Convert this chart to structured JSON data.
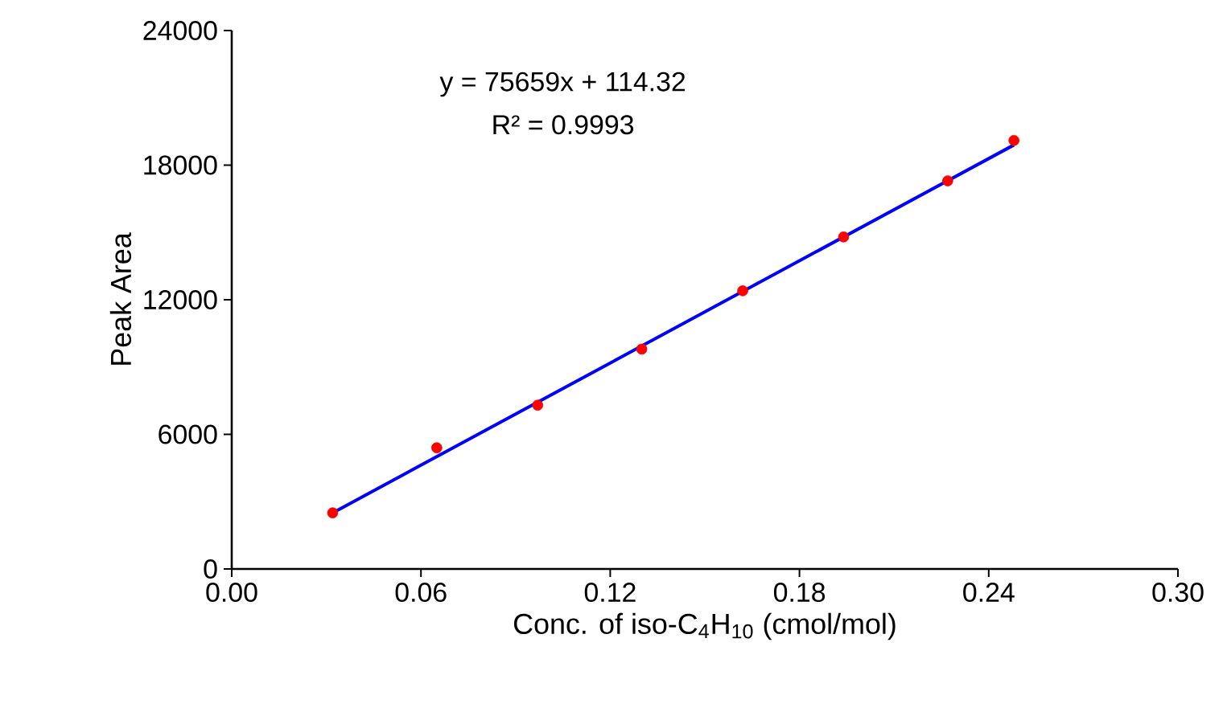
{
  "chart_data": {
    "type": "scatter",
    "xlabel": "Conc. of iso-C$_{4}$H$_{10}$ (cmol/mol)",
    "ylabel": "Peak Area",
    "xlim": [
      0,
      0.3
    ],
    "xticks": [
      {
        "value": 0,
        "label": "0.00"
      },
      {
        "value": 0.06,
        "label": "0.06"
      },
      {
        "value": 0.12,
        "label": "0.12"
      },
      {
        "value": 0.18,
        "label": "0.18"
      },
      {
        "value": 0.24,
        "label": "0.24"
      },
      {
        "value": 0.3,
        "label": "0.30"
      }
    ],
    "ylim": [
      0,
      24000
    ],
    "yticks": [
      0,
      6000,
      12000,
      18000,
      24000
    ],
    "grid": false,
    "legend": false,
    "series": [
      {
        "color": "#ff0000",
        "marker": "circle",
        "x": [
          0.032,
          0.065,
          0.097,
          0.13,
          0.162,
          0.194,
          0.227,
          0.248
        ],
        "values": [
          2500,
          5400,
          7300,
          9800,
          12400,
          14800,
          17300,
          19100
        ]
      },
      {
        "type": "line",
        "marker": "none",
        "color": "#0000ff",
        "x": [
          0.032,
          0.248
        ],
        "values": [
          2500,
          18900
        ]
      }
    ],
    "annotations": [
      "y = 75659x + 114.32",
      "R² = 0.9993"
    ]
  }
}
